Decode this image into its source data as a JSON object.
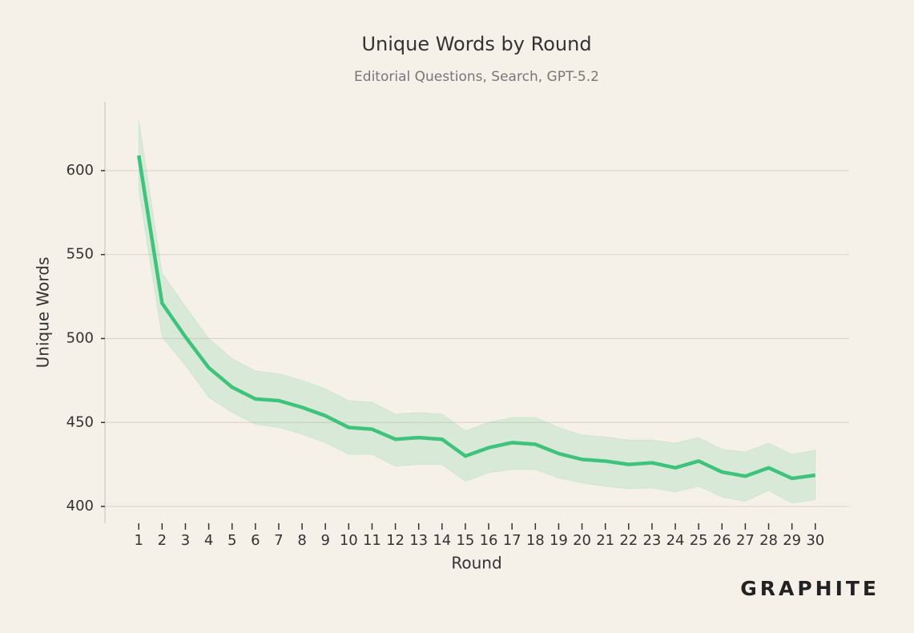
{
  "chart_data": {
    "type": "line",
    "title": "Unique Words by Round",
    "subtitle": "Editorial Questions, Search, GPT-5.2",
    "x_label": "Round",
    "y_label": "Unique Words",
    "brand": "GRAPHITE",
    "color": "#3ec47a",
    "x": [
      1,
      2,
      3,
      4,
      5,
      6,
      7,
      8,
      9,
      10,
      11,
      12,
      13,
      14,
      15,
      16,
      17,
      18,
      19,
      20,
      21,
      22,
      23,
      24,
      25,
      26,
      27,
      28,
      29,
      30
    ],
    "values": [
      609,
      521,
      501,
      482.6,
      471,
      464,
      463,
      459,
      454,
      447,
      446,
      440,
      441,
      440,
      430,
      435,
      438,
      437,
      431.5,
      428,
      427,
      425,
      426,
      423,
      427,
      420.5,
      418,
      423,
      416.7,
      418.6
    ],
    "band_upper": [
      630,
      539,
      519,
      500,
      488,
      480.7,
      479,
      475,
      470,
      463,
      462,
      455,
      456,
      455,
      445,
      450,
      453,
      453,
      447,
      442.5,
      441.5,
      439.5,
      439.5,
      437.7,
      441,
      434,
      432.5,
      437.7,
      431,
      433.5
    ],
    "band_lower": [
      588,
      501,
      484,
      465,
      456,
      449,
      447,
      443,
      438,
      431,
      431,
      424,
      425,
      425,
      415,
      420,
      422,
      422,
      417,
      414,
      412,
      410.5,
      411,
      408.6,
      412,
      405.7,
      403,
      409.5,
      402,
      404
    ],
    "xlim": [
      -0.45,
      31.45
    ],
    "xticks": [
      1,
      2,
      3,
      4,
      5,
      6,
      7,
      8,
      9,
      10,
      11,
      12,
      13,
      14,
      15,
      16,
      17,
      18,
      19,
      20,
      21,
      22,
      23,
      24,
      25,
      26,
      27,
      28,
      29,
      30
    ],
    "ylim": [
      390,
      641
    ],
    "yticks": [
      400,
      450,
      500,
      550,
      600
    ],
    "grid": true
  }
}
